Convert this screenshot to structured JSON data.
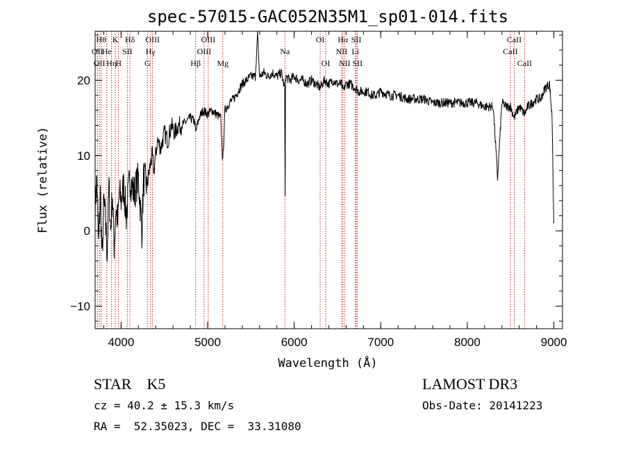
{
  "chart_data": {
    "type": "line",
    "title": "spec-57015-GAC052N35M1_sp01-014.fits",
    "xlabel": "Wavelength (Å)",
    "ylabel": "Flux (relative)",
    "xlim": [
      3700,
      9100
    ],
    "ylim": [
      -13,
      26.5
    ],
    "xticks": [
      4000,
      5000,
      6000,
      7000,
      8000,
      9000
    ],
    "xtick_labels": [
      "4000",
      "5000",
      "6000",
      "7000",
      "8000",
      "9000"
    ],
    "yticks": [
      -10,
      0,
      10,
      20
    ],
    "ytick_labels": [
      "−10",
      "0",
      "10",
      "20"
    ],
    "grid": false,
    "series": [
      {
        "name": "spectrum",
        "x": [
          3700,
          3720,
          3740,
          3760,
          3780,
          3800,
          3820,
          3840,
          3860,
          3880,
          3900,
          3920,
          3940,
          3960,
          3980,
          4000,
          4030,
          4060,
          4100,
          4150,
          4200,
          4240,
          4260,
          4300,
          4340,
          4360,
          4380,
          4420,
          4460,
          4500,
          4540,
          4580,
          4620,
          4660,
          4700,
          4750,
          4800,
          4850,
          4861,
          4900,
          4950,
          5000,
          5050,
          5100,
          5150,
          5175,
          5200,
          5250,
          5300,
          5350,
          5400,
          5450,
          5500,
          5550,
          5577,
          5600,
          5650,
          5700,
          5750,
          5800,
          5850,
          5890,
          5895,
          5900,
          5950,
          6000,
          6050,
          6100,
          6150,
          6200,
          6250,
          6300,
          6350,
          6400,
          6450,
          6500,
          6550,
          6563,
          6600,
          6650,
          6700,
          6750,
          6800,
          6850,
          6900,
          6950,
          7000,
          7100,
          7200,
          7300,
          7400,
          7500,
          7600,
          7700,
          7800,
          7900,
          8000,
          8100,
          8200,
          8300,
          8350,
          8400,
          8450,
          8500,
          8542,
          8600,
          8662,
          8700,
          8750,
          8800,
          8850,
          8900,
          8950,
          8980,
          9000
        ],
        "values": [
          3,
          7,
          -2,
          5,
          -4,
          4,
          1,
          -3,
          6,
          0,
          5,
          -2,
          3,
          1,
          5,
          4,
          6,
          2,
          7,
          5,
          7,
          0,
          7,
          6,
          9,
          10,
          8,
          12,
          11,
          13,
          12,
          14,
          13,
          14,
          14,
          14.5,
          15,
          14.5,
          13,
          15,
          16,
          15.5,
          16,
          15.5,
          15,
          9,
          16,
          17,
          17.5,
          18.5,
          19.5,
          20,
          20.5,
          20.5,
          26,
          20.5,
          21,
          20.5,
          21,
          20.5,
          21,
          19,
          4,
          20.5,
          20,
          20.5,
          20,
          20,
          19.5,
          20,
          19.5,
          19,
          20,
          19.5,
          20,
          19.5,
          19.5,
          18.5,
          19.5,
          19.5,
          19,
          18.5,
          18.5,
          18.5,
          18,
          18,
          18.5,
          18,
          18,
          17.5,
          17.5,
          17.5,
          17,
          17,
          17,
          17,
          17,
          17,
          16.5,
          16.5,
          7,
          17,
          16.5,
          16.5,
          15,
          16.5,
          15.5,
          16.5,
          17,
          17.5,
          17.5,
          19,
          19.5,
          15,
          1
        ]
      }
    ],
    "line_markers": [
      {
        "wl": 3727,
        "row": 1,
        "label": "OII"
      },
      {
        "wl": 3750,
        "row": 2,
        "label": "OII"
      },
      {
        "wl": 3770,
        "row": 0,
        "label": "Hθ"
      },
      {
        "wl": 3835,
        "row": 1,
        "label": "He"
      },
      {
        "wl": 3889,
        "row": 2,
        "label": "Hη"
      },
      {
        "wl": 3933,
        "row": 0,
        "label": "K"
      },
      {
        "wl": 3970,
        "row": 2,
        "label": "H"
      },
      {
        "wl": 4072,
        "row": 1,
        "label": "SII"
      },
      {
        "wl": 4102,
        "row": 0,
        "label": "Hδ"
      },
      {
        "wl": 4304,
        "row": 2,
        "label": "G"
      },
      {
        "wl": 4340,
        "row": 1,
        "label": "Hγ"
      },
      {
        "wl": 4363,
        "row": 0,
        "label": "OIII"
      },
      {
        "wl": 4861,
        "row": 2,
        "label": "Hβ"
      },
      {
        "wl": 4959,
        "row": 1,
        "label": "OIII"
      },
      {
        "wl": 5007,
        "row": 0,
        "label": "OIII"
      },
      {
        "wl": 5175,
        "row": 2,
        "label": "Mg"
      },
      {
        "wl": 5893,
        "row": 1,
        "label": "Na"
      },
      {
        "wl": 6300,
        "row": 0,
        "label": "OI"
      },
      {
        "wl": 6364,
        "row": 2,
        "label": "OI"
      },
      {
        "wl": 6548,
        "row": 1,
        "label": "NII"
      },
      {
        "wl": 6563,
        "row": 0,
        "label": "Hα"
      },
      {
        "wl": 6583,
        "row": 2,
        "label": "NII"
      },
      {
        "wl": 6707,
        "row": 1,
        "label": "Li"
      },
      {
        "wl": 6717,
        "row": 0,
        "label": "SII"
      },
      {
        "wl": 6731,
        "row": 2,
        "label": "SII"
      },
      {
        "wl": 8498,
        "row": 1,
        "label": "CaII"
      },
      {
        "wl": 8542,
        "row": 0,
        "label": "CaII"
      },
      {
        "wl": 8662,
        "row": 2,
        "label": "CaII"
      }
    ]
  },
  "footer": {
    "class_label": "STAR    K5",
    "cz": "cz = 40.2 ± 15.3 km/s",
    "radec": "RA =  52.35023, DEC =  33.31080",
    "survey": "LAMOST DR3",
    "obs_date": "Obs-Date: 20141223"
  }
}
